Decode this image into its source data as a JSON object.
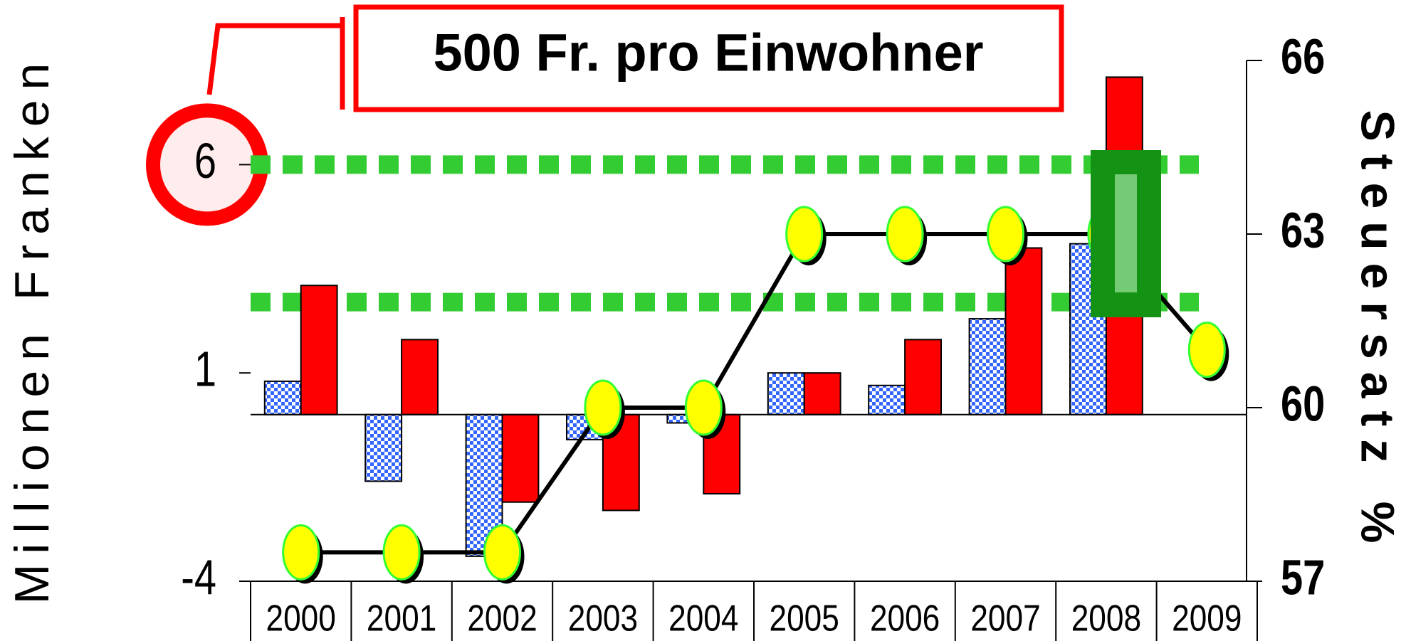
{
  "chart_data": {
    "type": "bar_line",
    "annotation": "500 Fr. pro Einwohner",
    "y_label": "Millionen Franken",
    "y2_label": "Steuersatz %",
    "categories": [
      "2000",
      "2001",
      "2002",
      "2003",
      "2004",
      "2005",
      "2006",
      "2007",
      "2008",
      "2009"
    ],
    "series": [
      {
        "type": "bar",
        "color": "#3366ff",
        "values": [
          0.8,
          -1.6,
          -3.4,
          -0.6,
          -0.2,
          1.0,
          0.7,
          2.3,
          4.1,
          null
        ]
      },
      {
        "type": "bar",
        "color": "#ff0000",
        "values": [
          3.1,
          1.8,
          -2.1,
          -2.3,
          -1.9,
          1.0,
          1.8,
          4.0,
          8.1,
          null
        ]
      },
      {
        "type": "line",
        "axis": "y2",
        "color": "#000000",
        "marker_color": "#ffff00",
        "values": [
          57.5,
          57.5,
          57.5,
          60,
          60,
          63,
          63,
          63,
          63,
          61
        ]
      }
    ],
    "reference_lines": [
      6,
      2.7
    ],
    "reference_color": "#33cc33",
    "ylim": [
      -4,
      8.5
    ],
    "yticks": [
      -4,
      1,
      6
    ],
    "y2lim": [
      57,
      66
    ],
    "y2ticks": [
      57,
      60,
      63,
      66
    ]
  }
}
